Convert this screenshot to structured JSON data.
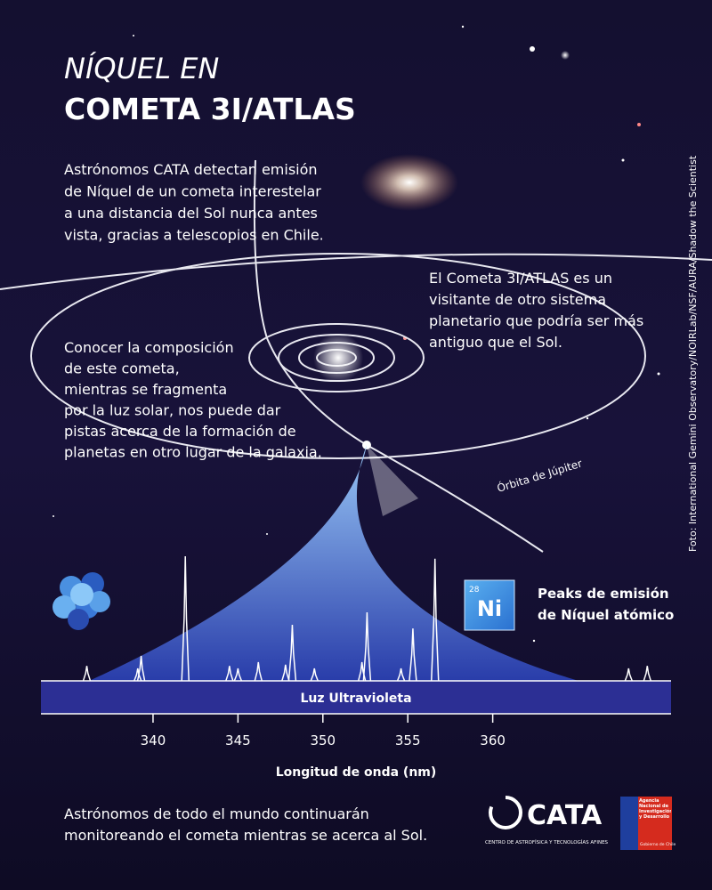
{
  "header": {
    "title_line1": "NÍQUEL EN",
    "title_line2": "COMETA 3I/ATLAS"
  },
  "intro": {
    "lines": [
      "Astrónomos CATA detectan emisión",
      "de Níquel de un cometa interestelar",
      "a una distancia del Sol nunca antes",
      "vista, gracias a telescopios en Chile."
    ]
  },
  "comet_note": {
    "lines": [
      "El Cometa 3I/ATLAS es un",
      "visitante de otro sistema",
      "planetario que podría ser más",
      "antiguo que el Sol."
    ]
  },
  "composition_note": {
    "lines": [
      "Conocer la composición",
      "de este cometa,",
      "mientras se fragmenta",
      "por la luz solar, nos puede dar",
      "pistas acerca de la formación de",
      "planetas en otro lugar de la galaxia."
    ]
  },
  "orbit_label": "Órbita de Júpiter",
  "credit": "Foto: International Gemini Observatory/NOIRLab/NSF/AURA/Shadow the Scientist",
  "element": {
    "number": "28",
    "symbol": "Ni",
    "caption_line1": "Peaks de emisión",
    "caption_line2": "de Níquel atómico"
  },
  "spectrum": {
    "band_label": "Luz Ultravioleta",
    "xlabel": "Longitud de onda (nm)",
    "xlim": [
      333.4,
      370.5
    ],
    "xticks": [
      340,
      345,
      350,
      355,
      360
    ],
    "peaks": {
      "x": [
        336.1,
        339.1,
        339.3,
        341.9,
        344.5,
        345.0,
        346.2,
        347.8,
        348.2,
        349.5,
        352.3,
        352.6,
        354.6,
        355.3,
        356.6,
        368.0,
        369.1
      ],
      "values": [
        12,
        10,
        20,
        100,
        12,
        10,
        15,
        13,
        45,
        10,
        15,
        55,
        10,
        42,
        98,
        10,
        12
      ]
    }
  },
  "footer": {
    "lines": [
      "Astrónomos de todo el mundo continuarán",
      "monitoreando el cometa mientras se acerca al Sol."
    ]
  },
  "logos": {
    "cata": "CATA",
    "cata_full": "CENTRO DE ASTROFÍSICA Y TECNOLOGÍAS AFINES",
    "agency": "Agencia Nacional de Investigación y Desarrollo",
    "government": "Gobierno de Chile"
  }
}
